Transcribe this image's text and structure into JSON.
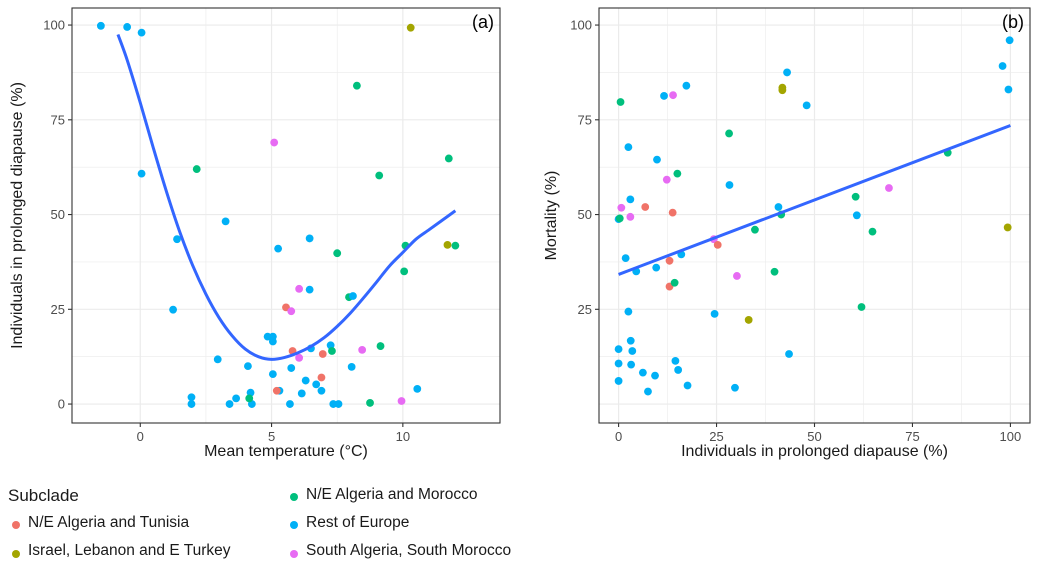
{
  "chart_data": [
    {
      "type": "scatter",
      "panel_label": "(a)",
      "xlabel": "Mean temperature (°C)",
      "ylabel": "Individuals in prolonged diapause (%)",
      "xlim": [
        -2.6,
        13.7
      ],
      "ylim": [
        -5,
        104.5
      ],
      "xticks": [
        0,
        5,
        10
      ],
      "yticks": [
        0,
        25,
        50,
        75,
        100
      ],
      "grid": true,
      "points": [
        {
          "x": -1.5,
          "y": 99.8,
          "g": "eu"
        },
        {
          "x": -0.5,
          "y": 99.5,
          "g": "eu"
        },
        {
          "x": 0.05,
          "y": 98.0,
          "g": "eu"
        },
        {
          "x": 0.05,
          "y": 60.8,
          "g": "eu"
        },
        {
          "x": 1.4,
          "y": 43.5,
          "g": "eu"
        },
        {
          "x": 1.25,
          "y": 24.9,
          "g": "eu"
        },
        {
          "x": 1.95,
          "y": 1.8,
          "g": "eu"
        },
        {
          "x": 1.95,
          "y": 0.0,
          "g": "eu"
        },
        {
          "x": 2.15,
          "y": 62.0,
          "g": "nea"
        },
        {
          "x": 2.95,
          "y": 11.8,
          "g": "eu"
        },
        {
          "x": 3.25,
          "y": 48.2,
          "g": "eu"
        },
        {
          "x": 3.4,
          "y": 0.0,
          "g": "eu"
        },
        {
          "x": 3.65,
          "y": 1.5,
          "g": "eu"
        },
        {
          "x": 4.1,
          "y": 10.0,
          "g": "eu"
        },
        {
          "x": 4.2,
          "y": 3.0,
          "g": "eu"
        },
        {
          "x": 4.25,
          "y": 0.0,
          "g": "eu"
        },
        {
          "x": 4.15,
          "y": 1.5,
          "g": "nea"
        },
        {
          "x": 4.85,
          "y": 17.8,
          "g": "eu"
        },
        {
          "x": 5.05,
          "y": 17.8,
          "g": "eu"
        },
        {
          "x": 5.05,
          "y": 16.5,
          "g": "eu"
        },
        {
          "x": 5.05,
          "y": 7.9,
          "g": "eu"
        },
        {
          "x": 5.3,
          "y": 3.5,
          "g": "eu"
        },
        {
          "x": 5.2,
          "y": 3.5,
          "g": "nat"
        },
        {
          "x": 5.1,
          "y": 69.0,
          "g": "sa"
        },
        {
          "x": 5.25,
          "y": 41.0,
          "g": "eu"
        },
        {
          "x": 5.55,
          "y": 25.5,
          "g": "nat"
        },
        {
          "x": 5.75,
          "y": 24.5,
          "g": "sa"
        },
        {
          "x": 5.8,
          "y": 14.0,
          "g": "nat"
        },
        {
          "x": 5.75,
          "y": 9.5,
          "g": "eu"
        },
        {
          "x": 5.7,
          "y": 0.0,
          "g": "eu"
        },
        {
          "x": 6.05,
          "y": 30.4,
          "g": "sa"
        },
        {
          "x": 6.05,
          "y": 12.2,
          "g": "sa"
        },
        {
          "x": 6.15,
          "y": 2.8,
          "g": "eu"
        },
        {
          "x": 6.3,
          "y": 6.2,
          "g": "eu"
        },
        {
          "x": 6.45,
          "y": 43.7,
          "g": "eu"
        },
        {
          "x": 6.45,
          "y": 30.2,
          "g": "eu"
        },
        {
          "x": 6.5,
          "y": 14.7,
          "g": "eu"
        },
        {
          "x": 6.7,
          "y": 5.2,
          "g": "eu"
        },
        {
          "x": 6.9,
          "y": 3.5,
          "g": "eu"
        },
        {
          "x": 6.95,
          "y": 13.2,
          "g": "nat"
        },
        {
          "x": 6.9,
          "y": 7.0,
          "g": "nat"
        },
        {
          "x": 7.25,
          "y": 15.5,
          "g": "eu"
        },
        {
          "x": 7.3,
          "y": 14.0,
          "g": "nea"
        },
        {
          "x": 7.35,
          "y": 0.0,
          "g": "eu"
        },
        {
          "x": 7.55,
          "y": 0.0,
          "g": "eu"
        },
        {
          "x": 7.5,
          "y": 39.8,
          "g": "nea"
        },
        {
          "x": 7.95,
          "y": 28.2,
          "g": "nea"
        },
        {
          "x": 8.1,
          "y": 28.5,
          "g": "eu"
        },
        {
          "x": 8.05,
          "y": 9.8,
          "g": "eu"
        },
        {
          "x": 8.25,
          "y": 84.0,
          "g": "nea"
        },
        {
          "x": 8.45,
          "y": 14.3,
          "g": "sa"
        },
        {
          "x": 8.75,
          "y": 0.3,
          "g": "nea"
        },
        {
          "x": 9.1,
          "y": 60.3,
          "g": "nea"
        },
        {
          "x": 9.15,
          "y": 15.3,
          "g": "nea"
        },
        {
          "x": 9.95,
          "y": 0.8,
          "g": "sa"
        },
        {
          "x": 10.1,
          "y": 41.8,
          "g": "nea"
        },
        {
          "x": 10.05,
          "y": 35.0,
          "g": "nea"
        },
        {
          "x": 10.3,
          "y": 99.3,
          "g": "isr"
        },
        {
          "x": 10.55,
          "y": 4.0,
          "g": "eu"
        },
        {
          "x": 11.7,
          "y": 42.0,
          "g": "isr"
        },
        {
          "x": 11.75,
          "y": 64.8,
          "g": "nea"
        },
        {
          "x": 12.0,
          "y": 41.8,
          "g": "nea"
        }
      ],
      "fit_line": {
        "x": [
          -0.85,
          -0.5,
          0,
          0.5,
          1,
          1.5,
          2,
          2.5,
          3,
          3.5,
          4,
          4.5,
          5,
          5.5,
          6,
          6.5,
          7,
          7.5,
          8,
          8.5,
          9,
          9.5,
          10,
          10.5,
          11,
          11.5,
          12
        ],
        "y": [
          97.5,
          90.8,
          79.5,
          67.5,
          56.0,
          45.5,
          36.5,
          29.0,
          22.8,
          18.0,
          14.5,
          12.5,
          11.8,
          12.3,
          13.5,
          15.2,
          17.5,
          20.5,
          24.0,
          28.0,
          32.2,
          36.5,
          40.0,
          43.5,
          46.0,
          48.5,
          51.0
        ]
      }
    },
    {
      "type": "scatter",
      "panel_label": "(b)",
      "xlabel": "Individuals in prolonged diapause (%)",
      "ylabel": "Mortality (%)",
      "xlim": [
        -5,
        105
      ],
      "ylim": [
        -5,
        104.5
      ],
      "xticks": [
        0,
        25,
        50,
        75,
        100
      ],
      "yticks": [
        25,
        50,
        75,
        100
      ],
      "grid": true,
      "points": [
        {
          "x": 0.5,
          "y": 79.7,
          "g": "nea"
        },
        {
          "x": 0.0,
          "y": 48.8,
          "g": "eu"
        },
        {
          "x": 0.3,
          "y": 49.0,
          "g": "nea"
        },
        {
          "x": 0.7,
          "y": 51.8,
          "g": "sa"
        },
        {
          "x": 1.8,
          "y": 38.5,
          "g": "eu"
        },
        {
          "x": 0.0,
          "y": 14.5,
          "g": "eu"
        },
        {
          "x": 0.0,
          "y": 10.7,
          "g": "eu"
        },
        {
          "x": 0.0,
          "y": 6.1,
          "g": "eu"
        },
        {
          "x": 2.5,
          "y": 67.8,
          "g": "eu"
        },
        {
          "x": 3.0,
          "y": 54.0,
          "g": "eu"
        },
        {
          "x": 3.0,
          "y": 49.4,
          "g": "sa"
        },
        {
          "x": 2.5,
          "y": 24.4,
          "g": "eu"
        },
        {
          "x": 3.1,
          "y": 16.7,
          "g": "eu"
        },
        {
          "x": 3.5,
          "y": 14.0,
          "g": "eu"
        },
        {
          "x": 3.2,
          "y": 10.4,
          "g": "eu"
        },
        {
          "x": 4.5,
          "y": 35.0,
          "g": "eu"
        },
        {
          "x": 6.2,
          "y": 8.3,
          "g": "eu"
        },
        {
          "x": 6.8,
          "y": 52.0,
          "g": "nat"
        },
        {
          "x": 7.5,
          "y": 3.3,
          "g": "eu"
        },
        {
          "x": 9.3,
          "y": 7.5,
          "g": "eu"
        },
        {
          "x": 9.8,
          "y": 64.5,
          "g": "eu"
        },
        {
          "x": 9.6,
          "y": 36.0,
          "g": "eu"
        },
        {
          "x": 11.6,
          "y": 81.3,
          "g": "eu"
        },
        {
          "x": 12.3,
          "y": 59.2,
          "g": "sa"
        },
        {
          "x": 13.0,
          "y": 37.8,
          "g": "nat"
        },
        {
          "x": 13.0,
          "y": 31.0,
          "g": "nat"
        },
        {
          "x": 13.8,
          "y": 50.5,
          "g": "nat"
        },
        {
          "x": 13.9,
          "y": 81.5,
          "g": "sa"
        },
        {
          "x": 14.3,
          "y": 32.0,
          "g": "nea"
        },
        {
          "x": 14.5,
          "y": 11.4,
          "g": "eu"
        },
        {
          "x": 15.0,
          "y": 60.8,
          "g": "nea"
        },
        {
          "x": 15.2,
          "y": 9.0,
          "g": "eu"
        },
        {
          "x": 16.0,
          "y": 39.5,
          "g": "eu"
        },
        {
          "x": 17.3,
          "y": 84.0,
          "g": "eu"
        },
        {
          "x": 17.6,
          "y": 4.9,
          "g": "eu"
        },
        {
          "x": 24.3,
          "y": 43.5,
          "g": "sa"
        },
        {
          "x": 24.5,
          "y": 23.8,
          "g": "eu"
        },
        {
          "x": 25.3,
          "y": 42.0,
          "g": "nat"
        },
        {
          "x": 28.2,
          "y": 71.4,
          "g": "nea"
        },
        {
          "x": 28.3,
          "y": 57.8,
          "g": "eu"
        },
        {
          "x": 29.7,
          "y": 4.3,
          "g": "eu"
        },
        {
          "x": 30.2,
          "y": 33.8,
          "g": "sa"
        },
        {
          "x": 33.2,
          "y": 22.2,
          "g": "isr"
        },
        {
          "x": 34.8,
          "y": 46.0,
          "g": "nea"
        },
        {
          "x": 39.8,
          "y": 34.9,
          "g": "nea"
        },
        {
          "x": 40.8,
          "y": 52.0,
          "g": "eu"
        },
        {
          "x": 41.5,
          "y": 50.0,
          "g": "nea"
        },
        {
          "x": 41.8,
          "y": 83.5,
          "g": "isr"
        },
        {
          "x": 41.8,
          "y": 82.8,
          "g": "isr"
        },
        {
          "x": 43.0,
          "y": 87.5,
          "g": "eu"
        },
        {
          "x": 43.5,
          "y": 13.2,
          "g": "eu"
        },
        {
          "x": 48.0,
          "y": 78.8,
          "g": "eu"
        },
        {
          "x": 60.5,
          "y": 54.7,
          "g": "nea"
        },
        {
          "x": 60.8,
          "y": 49.8,
          "g": "eu"
        },
        {
          "x": 62.0,
          "y": 25.6,
          "g": "nea"
        },
        {
          "x": 64.8,
          "y": 45.5,
          "g": "nea"
        },
        {
          "x": 69.0,
          "y": 57.0,
          "g": "sa"
        },
        {
          "x": 84.0,
          "y": 66.3,
          "g": "nea"
        },
        {
          "x": 98.0,
          "y": 89.2,
          "g": "eu"
        },
        {
          "x": 99.3,
          "y": 46.6,
          "g": "isr"
        },
        {
          "x": 99.5,
          "y": 83.0,
          "g": "eu"
        },
        {
          "x": 99.8,
          "y": 96.0,
          "g": "eu"
        }
      ],
      "fit_line": {
        "x": [
          0,
          100
        ],
        "y": [
          34.2,
          73.5
        ]
      }
    }
  ],
  "groups": {
    "nat": "#F07368",
    "isr": "#A3A500",
    "nea": "#00BF7D",
    "eu": "#00B0F6",
    "sa": "#E76BF3"
  },
  "colors": {
    "fit_line": "#3366FF",
    "grid": "#EBEBEB",
    "frame": "#333333"
  },
  "legend": {
    "title": "Subclade",
    "items": [
      {
        "key": "nat",
        "label": "N/E Algeria and Tunisia"
      },
      {
        "key": "isr",
        "label": "Israel, Lebanon and E Turkey"
      },
      {
        "key": "nea",
        "label": "N/E Algeria and Morocco"
      },
      {
        "key": "eu",
        "label": "Rest of Europe"
      },
      {
        "key": "sa",
        "label": "South Algeria, South Morocco"
      }
    ]
  }
}
